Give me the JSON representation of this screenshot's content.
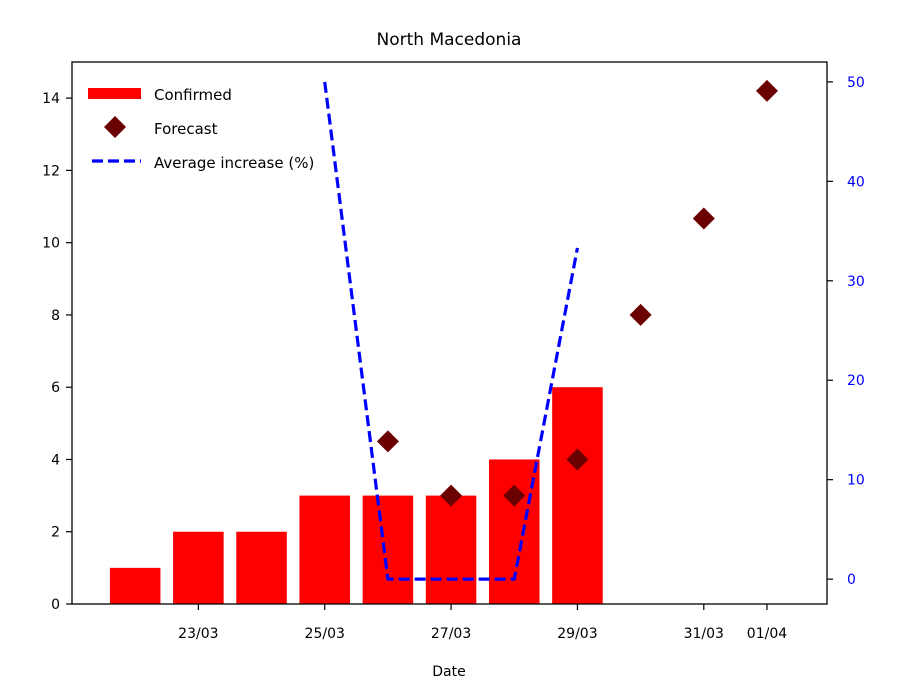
{
  "chart_data": {
    "type": "bar",
    "title": "North Macedonia",
    "xlabel": "Date",
    "ylabel": "",
    "y2label": "",
    "ylim": [
      0,
      15
    ],
    "y2lim": [
      -2.5,
      52
    ],
    "yticks": [
      0,
      2,
      4,
      6,
      8,
      10,
      12,
      14
    ],
    "y2ticks": [
      0,
      10,
      20,
      30,
      40,
      50
    ],
    "x_ticks": [
      {
        "label": "23/03",
        "day": 23
      },
      {
        "label": "25/03",
        "day": 25
      },
      {
        "label": "27/03",
        "day": 27
      },
      {
        "label": "29/03",
        "day": 29
      },
      {
        "label": "31/03",
        "day": 31
      },
      {
        "label": "01/04",
        "day": 32
      }
    ],
    "xlim_days": [
      21,
      32.95
    ],
    "series": [
      {
        "name": "Confirmed",
        "kind": "bar",
        "color": "#ff0000",
        "points": [
          {
            "date": "22/03",
            "day": 22,
            "value": 1
          },
          {
            "date": "23/03",
            "day": 23,
            "value": 2
          },
          {
            "date": "24/03",
            "day": 24,
            "value": 2
          },
          {
            "date": "25/03",
            "day": 25,
            "value": 3
          },
          {
            "date": "26/03",
            "day": 26,
            "value": 3
          },
          {
            "date": "27/03",
            "day": 27,
            "value": 3
          },
          {
            "date": "28/03",
            "day": 28,
            "value": 4
          },
          {
            "date": "29/03",
            "day": 29,
            "value": 6
          }
        ]
      },
      {
        "name": "Forecast",
        "kind": "scatter",
        "marker": "diamond",
        "color": "#6b0000",
        "points": [
          {
            "date": "26/03",
            "day": 26,
            "value": 4.5
          },
          {
            "date": "27/03",
            "day": 27,
            "value": 3
          },
          {
            "date": "28/03",
            "day": 28,
            "value": 3
          },
          {
            "date": "29/03",
            "day": 29,
            "value": 4
          },
          {
            "date": "30/03",
            "day": 30,
            "value": 8
          },
          {
            "date": "31/03",
            "day": 31,
            "value": 10.67
          },
          {
            "date": "01/04",
            "day": 32,
            "value": 14.2
          }
        ]
      },
      {
        "name": "Average increase (%)",
        "kind": "line",
        "style": "dashed",
        "axis": "right",
        "color": "#0000ff",
        "points": [
          {
            "date": "25/03",
            "day": 25,
            "value": 50
          },
          {
            "date": "26/03",
            "day": 26,
            "value": 0
          },
          {
            "date": "27/03",
            "day": 27,
            "value": 0
          },
          {
            "date": "28/03",
            "day": 28,
            "value": 0
          },
          {
            "date": "29/03",
            "day": 29,
            "value": 33.3
          }
        ]
      }
    ],
    "legend_position": "top-left",
    "right_axis_color": "#0000ff",
    "grid": false
  }
}
